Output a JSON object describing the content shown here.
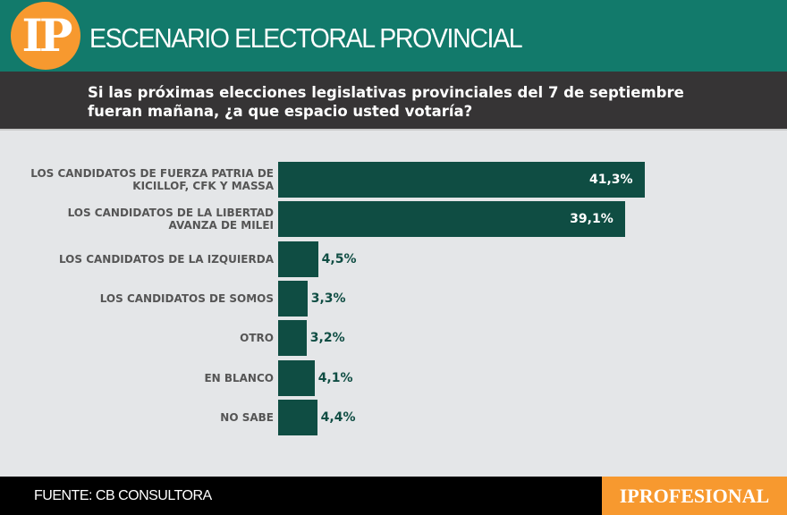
{
  "header": {
    "logo": "IP",
    "title": "ESCENARIO ELECTORAL PROVINCIAL"
  },
  "question": "Si las próximas elecciones legislativas provinciales del 7 de septiembre fueran mañana, ¿a que espacio usted votaría?",
  "footer": {
    "source": "FUENTE: CB CONSULTORA",
    "brand": "IPROFESIONAL"
  },
  "colors": {
    "header": "#127a6b",
    "bar": "#0f4d43",
    "accent": "#f7992f"
  },
  "chart_data": {
    "type": "bar",
    "orientation": "horizontal",
    "categories": [
      "LOS CANDIDATOS DE FUERZA PATRIA DE KICILLOF, CFK Y MASSA",
      "LOS CANDIDATOS DE LA LIBERTAD AVANZA DE MILEI",
      "LOS CANDIDATOS DE LA IZQUIERDA",
      "LOS CANDIDATOS DE SOMOS",
      "OTRO",
      "EN BLANCO",
      "NO SABE"
    ],
    "values": [
      41.3,
      39.1,
      4.5,
      3.3,
      3.2,
      4.1,
      4.4
    ],
    "labels": [
      "41,3%",
      "39,1%",
      "4,5%",
      "3,3%",
      "3,2%",
      "4,1%",
      "4,4%"
    ]
  }
}
